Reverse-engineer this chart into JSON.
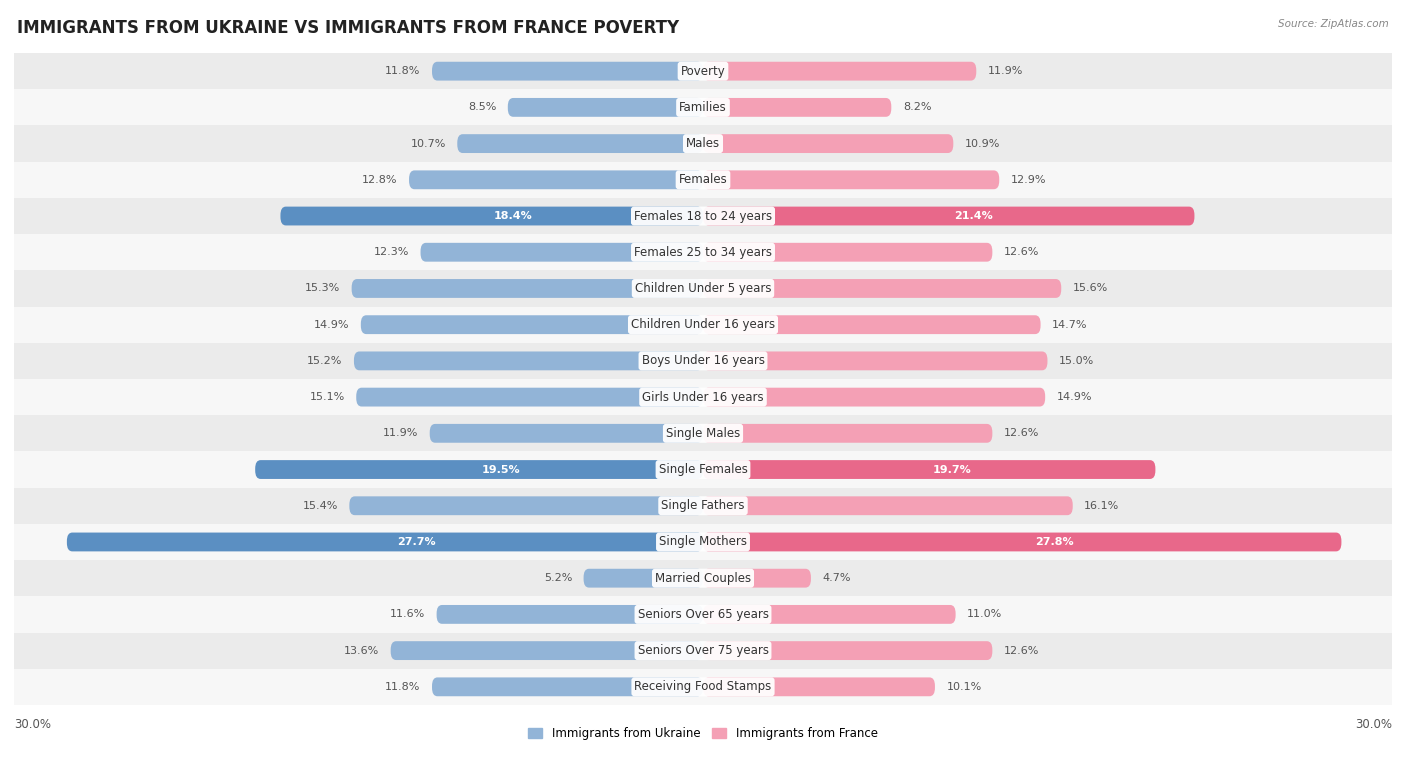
{
  "title": "IMMIGRANTS FROM UKRAINE VS IMMIGRANTS FROM FRANCE POVERTY",
  "source": "Source: ZipAtlas.com",
  "categories": [
    "Poverty",
    "Families",
    "Males",
    "Females",
    "Females 18 to 24 years",
    "Females 25 to 34 years",
    "Children Under 5 years",
    "Children Under 16 years",
    "Boys Under 16 years",
    "Girls Under 16 years",
    "Single Males",
    "Single Females",
    "Single Fathers",
    "Single Mothers",
    "Married Couples",
    "Seniors Over 65 years",
    "Seniors Over 75 years",
    "Receiving Food Stamps"
  ],
  "ukraine_values": [
    11.8,
    8.5,
    10.7,
    12.8,
    18.4,
    12.3,
    15.3,
    14.9,
    15.2,
    15.1,
    11.9,
    19.5,
    15.4,
    27.7,
    5.2,
    11.6,
    13.6,
    11.8
  ],
  "france_values": [
    11.9,
    8.2,
    10.9,
    12.9,
    21.4,
    12.6,
    15.6,
    14.7,
    15.0,
    14.9,
    12.6,
    19.7,
    16.1,
    27.8,
    4.7,
    11.0,
    12.6,
    10.1
  ],
  "ukraine_color": "#92b4d7",
  "france_color": "#f4a0b5",
  "highlight_indices": [
    4,
    11,
    13
  ],
  "ukraine_highlight_color": "#5b8fc2",
  "france_highlight_color": "#e8688a",
  "background_color": "#ffffff",
  "row_alt_color": "#ebebeb",
  "row_main_color": "#f7f7f7",
  "xlim": 30.0,
  "legend_ukraine": "Immigrants from Ukraine",
  "legend_france": "Immigrants from France",
  "bar_height": 0.52,
  "title_fontsize": 12,
  "label_fontsize": 8.5,
  "value_fontsize": 8,
  "cat_fontsize": 8.5
}
